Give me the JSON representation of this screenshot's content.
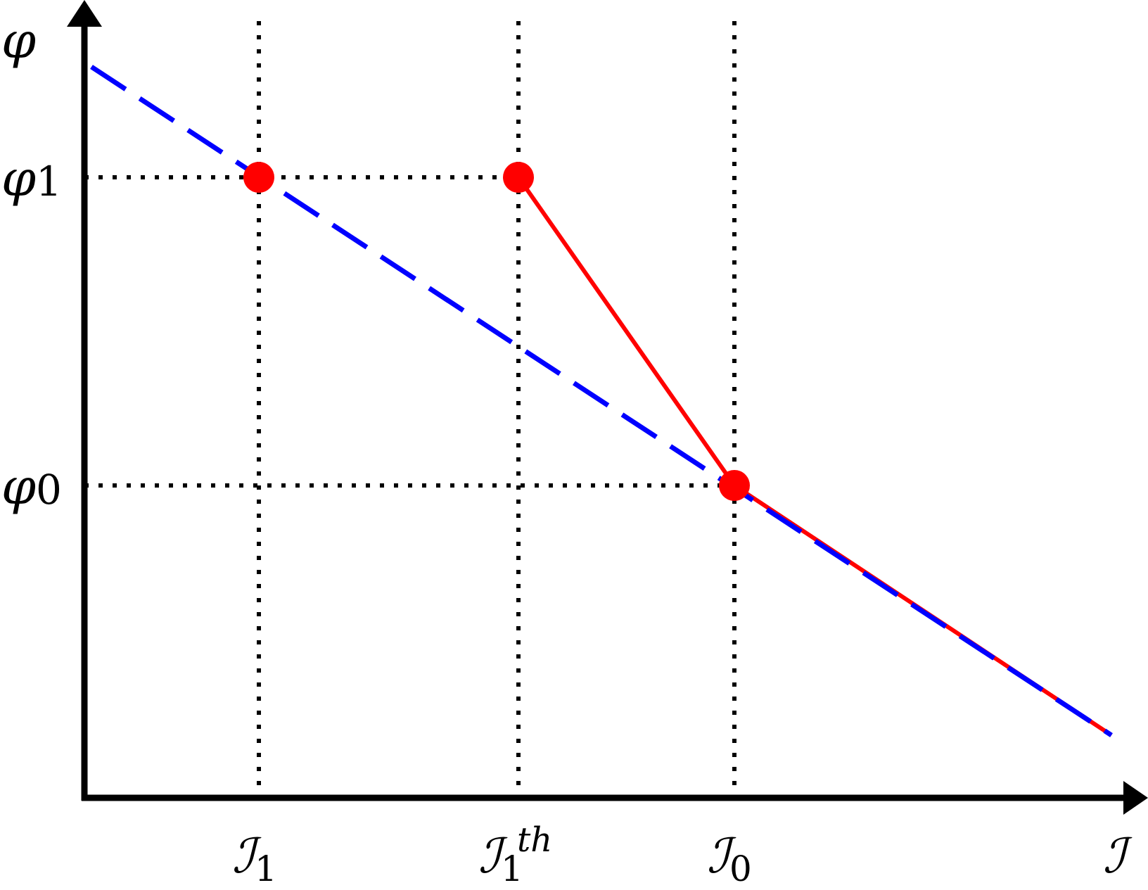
{
  "colors": {
    "axis": "#000000",
    "guide": "#000000",
    "reference_line": "#0000ff",
    "response_line": "#ff0000",
    "point": "#ff0000"
  },
  "axes": {
    "y_symbol": "φ",
    "x_symbol": "ℐ"
  },
  "y_ticks": [
    {
      "symbol": "φ",
      "subscript": "1"
    },
    {
      "symbol": "φ",
      "subscript": "0"
    }
  ],
  "x_ticks": [
    {
      "symbol": "ℐ",
      "subscript": "1",
      "superscript": ""
    },
    {
      "symbol": "ℐ",
      "subscript": "1",
      "superscript": "th"
    },
    {
      "symbol": "ℐ",
      "subscript": "0",
      "superscript": ""
    }
  ]
}
